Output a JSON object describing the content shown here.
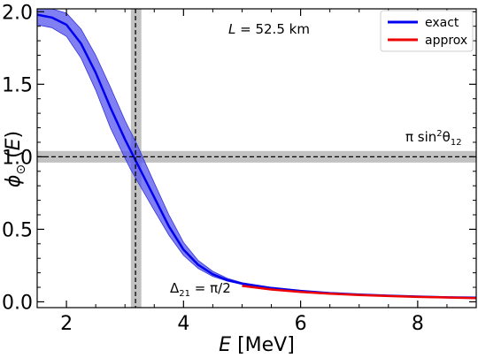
{
  "chart_data": {
    "type": "line",
    "title": "",
    "xlabel": "E [MeV]",
    "ylabel": "φ⊙ (E)",
    "xlim": [
      1.5,
      9.0
    ],
    "ylim": [
      -0.04,
      2.02
    ],
    "xticks": [
      2,
      4,
      6,
      8
    ],
    "yticks": [
      0.0,
      0.5,
      1.0,
      1.5,
      2.0
    ],
    "xtick_labels": [
      "2",
      "4",
      "6",
      "8"
    ],
    "ytick_labels": [
      "0.0",
      "0.5",
      "1.0",
      "1.5",
      "2.0"
    ],
    "grid": false,
    "legend_position": "top-right",
    "series": [
      {
        "name": "exact",
        "color": "#0000ee",
        "x": [
          1.5,
          1.75,
          2.0,
          2.25,
          2.5,
          2.75,
          3.0,
          3.1,
          3.2,
          3.3,
          3.5,
          3.75,
          4.0,
          4.25,
          4.5,
          4.75,
          5.0,
          5.5,
          6.0,
          6.5,
          7.0,
          7.5,
          8.0,
          8.5,
          9.0
        ],
        "y": [
          1.98,
          1.96,
          1.91,
          1.78,
          1.58,
          1.34,
          1.12,
          1.04,
          0.96,
          0.88,
          0.72,
          0.52,
          0.36,
          0.255,
          0.19,
          0.15,
          0.125,
          0.095,
          0.075,
          0.06,
          0.05,
          0.042,
          0.036,
          0.031,
          0.028
        ],
        "band_lower": [
          1.91,
          1.89,
          1.83,
          1.68,
          1.46,
          1.2,
          0.99,
          0.91,
          0.84,
          0.77,
          0.63,
          0.46,
          0.32,
          0.23,
          0.175,
          0.142,
          0.12,
          0.092,
          0.073,
          0.059,
          0.049,
          0.041,
          0.035,
          0.03,
          0.027
        ],
        "band_upper": [
          2.05,
          2.04,
          1.99,
          1.88,
          1.7,
          1.48,
          1.25,
          1.17,
          1.09,
          1.0,
          0.82,
          0.6,
          0.41,
          0.285,
          0.21,
          0.162,
          0.132,
          0.099,
          0.078,
          0.062,
          0.051,
          0.043,
          0.037,
          0.032,
          0.029
        ]
      },
      {
        "name": "approx",
        "color": "#ee0000",
        "x": [
          5.0,
          5.5,
          6.0,
          6.5,
          7.0,
          7.5,
          8.0,
          8.5,
          9.0
        ],
        "y": [
          0.11,
          0.085,
          0.068,
          0.056,
          0.047,
          0.04,
          0.034,
          0.03,
          0.026
        ]
      }
    ],
    "reference_lines": {
      "horizontal": {
        "value": 1.0,
        "band": [
          0.96,
          1.04
        ],
        "label": "π sin²θ₁₂"
      },
      "vertical": {
        "value": 3.18,
        "band": [
          3.1,
          3.28
        ],
        "label": "Δ₂₁ = π/2"
      }
    },
    "annotations": [
      {
        "text": "L = 52.5 km"
      }
    ]
  }
}
